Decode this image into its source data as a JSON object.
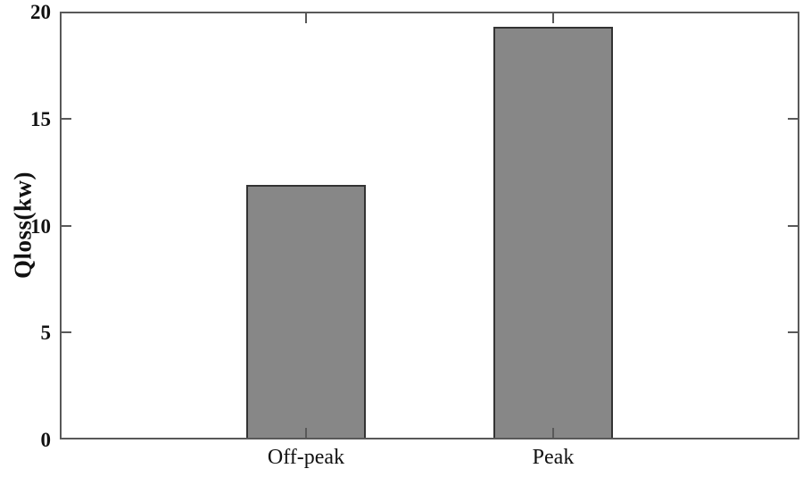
{
  "figure": {
    "background": "#ffffff"
  },
  "chart_data": {
    "type": "bar",
    "categories": [
      "Off-peak",
      "Peak"
    ],
    "values": [
      11.9,
      19.3
    ],
    "title": "",
    "xlabel": "",
    "ylabel": "Qloss(kw)",
    "ylim": [
      0,
      20
    ],
    "yticks": [
      0,
      5,
      10,
      15,
      20
    ],
    "ytick_labels": [
      "0",
      "5",
      "10",
      "15",
      "20"
    ],
    "grid": false,
    "legend": null,
    "bar_color": "#878787",
    "bar_edge_color": "#333333",
    "axis_color": "#595959",
    "text_color": "#111111"
  }
}
